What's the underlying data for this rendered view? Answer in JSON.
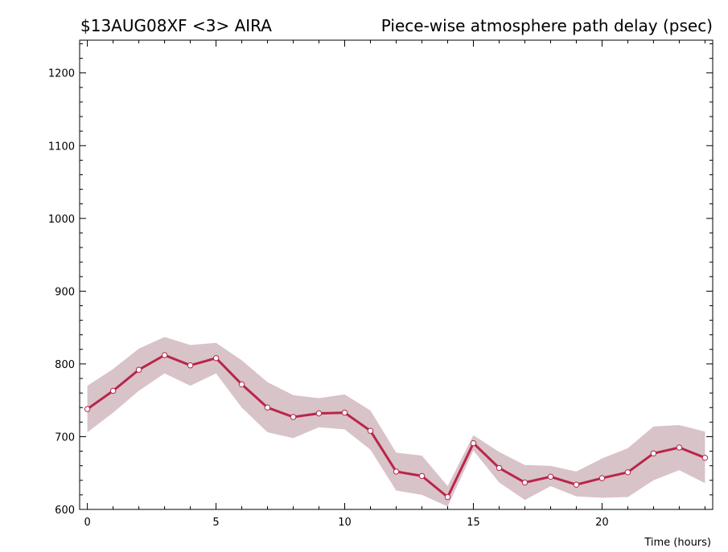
{
  "header": {
    "left": "$13AUG08XF <3>  AIRA",
    "right": "Piece-wise atmosphere path delay (psec)"
  },
  "chart_data": {
    "type": "line",
    "title": "Piece-wise atmosphere path delay (psec)",
    "xlabel": "Time (hours)",
    "ylabel": "",
    "xlim": [
      -0.3,
      24.3
    ],
    "ylim": [
      600,
      1245
    ],
    "xticks": [
      0,
      5,
      10,
      15,
      20
    ],
    "yticks": [
      600,
      700,
      800,
      900,
      1000,
      1100,
      1200
    ],
    "grid": false,
    "x": [
      0,
      1,
      2,
      3,
      4,
      5,
      6,
      7,
      8,
      9,
      10,
      11,
      12,
      13,
      14,
      15,
      16,
      17,
      18,
      19,
      20,
      21,
      22,
      23,
      24
    ],
    "series": [
      {
        "values": [
          738,
          763,
          792,
          812,
          798,
          808,
          772,
          740,
          727,
          732,
          733,
          708,
          652,
          646,
          617,
          691,
          657,
          637,
          645,
          634,
          643,
          651,
          677,
          685,
          671
        ],
        "upper": [
          770,
          793,
          821,
          837,
          826,
          829,
          805,
          775,
          757,
          753,
          758,
          736,
          678,
          674,
          632,
          702,
          679,
          661,
          660,
          652,
          670,
          684,
          714,
          716,
          707
        ],
        "lower": [
          706,
          733,
          763,
          787,
          770,
          787,
          740,
          706,
          698,
          713,
          710,
          682,
          626,
          620,
          604,
          681,
          637,
          613,
          632,
          618,
          616,
          617,
          640,
          654,
          636
        ]
      }
    ],
    "colors": {
      "line": "#b8264a",
      "band": "#d8c3c8",
      "marker_fill": "#ffffff"
    }
  }
}
